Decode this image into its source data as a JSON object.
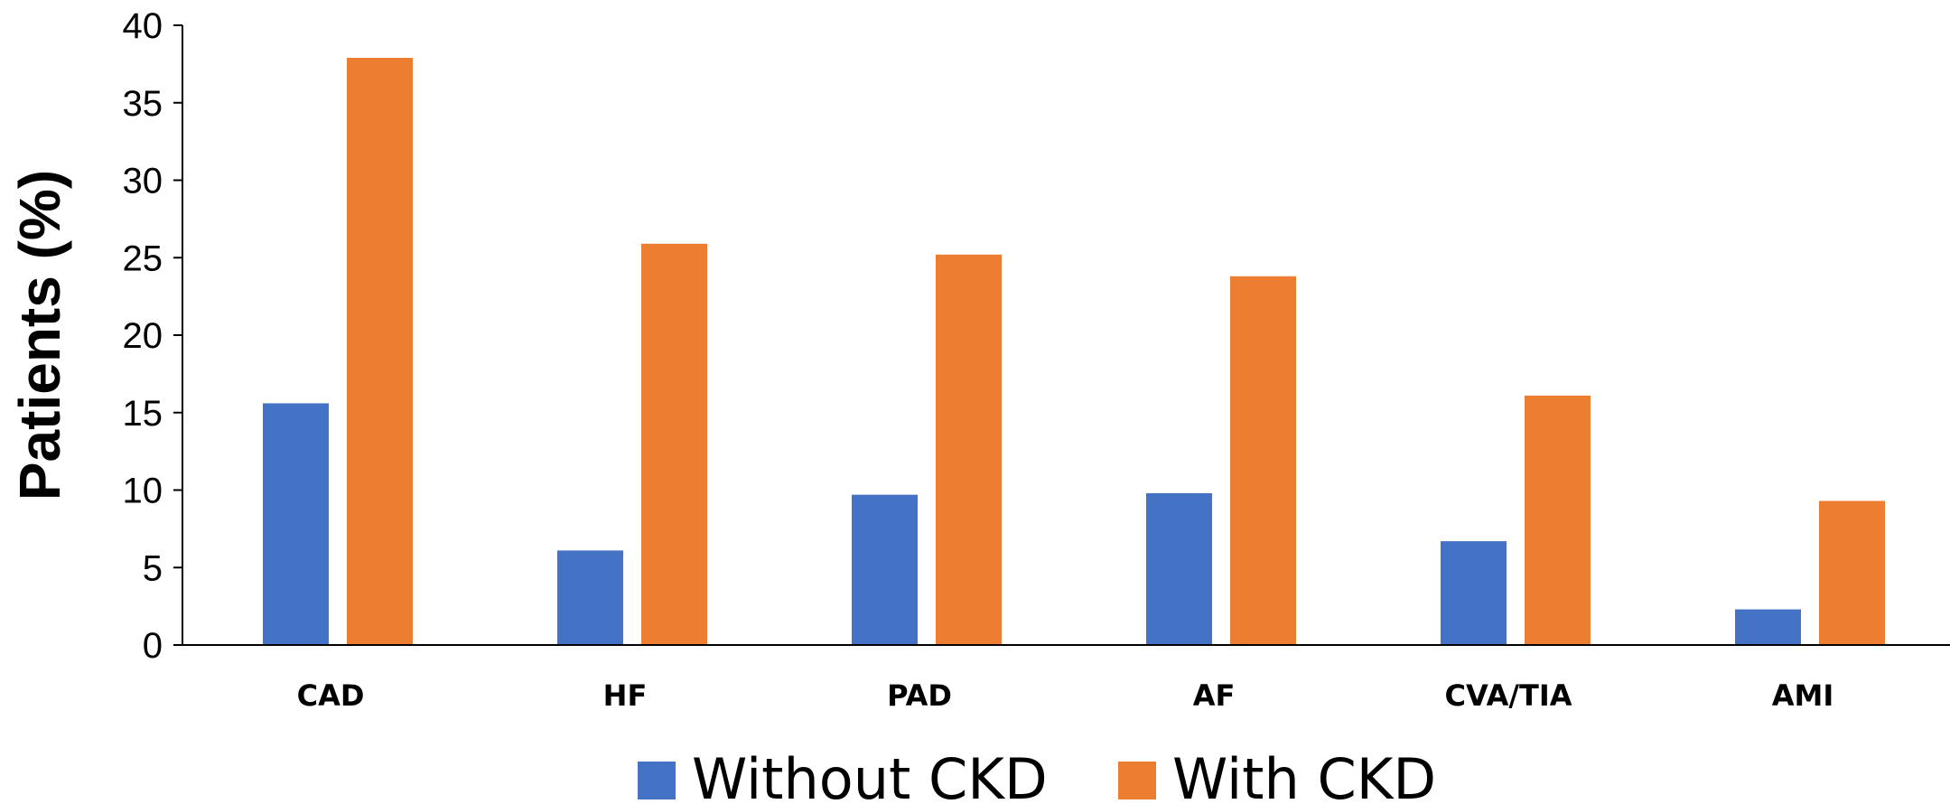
{
  "chart_data": {
    "type": "bar",
    "ylabel": "Patients (%)",
    "xlabel": "",
    "categories": [
      "CAD",
      "HF",
      "PAD",
      "AF",
      "CVA/TIA",
      "AMI"
    ],
    "ylim": [
      0,
      40
    ],
    "yticks": [
      0,
      5,
      10,
      15,
      20,
      25,
      30,
      35,
      40
    ],
    "grid": false,
    "legend_position": "bottom",
    "series": [
      {
        "name": "Without CKD",
        "color": "#4472C4",
        "values": [
          15.6,
          6.1,
          9.7,
          9.8,
          6.7,
          2.3
        ]
      },
      {
        "name": "With CKD",
        "color": "#ED7D31",
        "values": [
          37.9,
          25.9,
          25.2,
          23.8,
          16.1,
          9.3
        ]
      }
    ]
  }
}
